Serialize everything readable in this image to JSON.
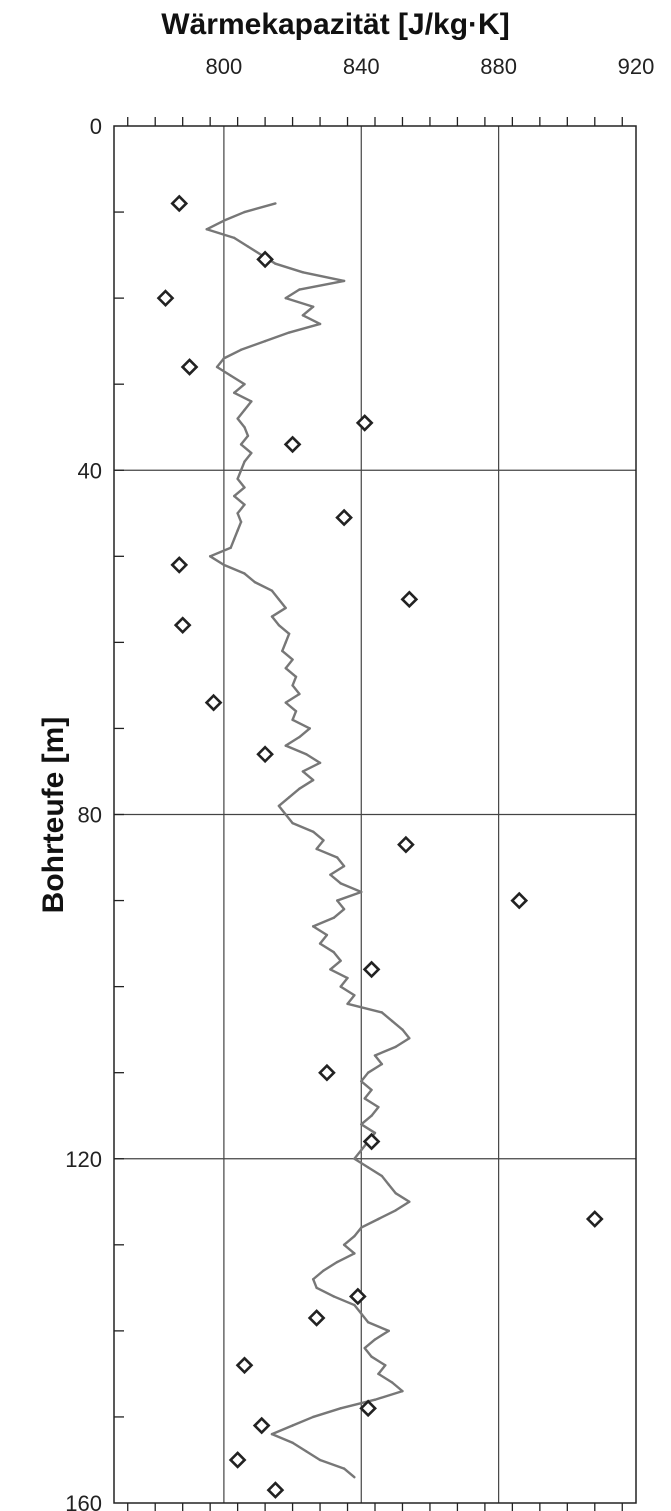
{
  "chart_data": {
    "type": "line",
    "title": "Wärmekapazität [J/kg·K]",
    "xlabel": "Wärmekapazität [J/kg·K]",
    "ylabel": "Bohrteufe [m]",
    "xlim": [
      768,
      920
    ],
    "ylim": [
      0,
      160
    ],
    "y_inverted": true,
    "x_axis_position": "top",
    "x_ticks": [
      800,
      840,
      880,
      920
    ],
    "y_ticks": [
      0,
      40,
      80,
      120,
      160
    ],
    "grid": true,
    "series": [
      {
        "style": "line",
        "color": "#777777",
        "points": [
          [
            815,
            9
          ],
          [
            806,
            10
          ],
          [
            800,
            11
          ],
          [
            795,
            12
          ],
          [
            803,
            13
          ],
          [
            807,
            14
          ],
          [
            811,
            15
          ],
          [
            815,
            16
          ],
          [
            823,
            17
          ],
          [
            835,
            18
          ],
          [
            822,
            19
          ],
          [
            818,
            20
          ],
          [
            826,
            21
          ],
          [
            823,
            22
          ],
          [
            828,
            23
          ],
          [
            819,
            24
          ],
          [
            812,
            25
          ],
          [
            805,
            26
          ],
          [
            800,
            27
          ],
          [
            798,
            28
          ],
          [
            802,
            29
          ],
          [
            806,
            30
          ],
          [
            803,
            31
          ],
          [
            808,
            32
          ],
          [
            806,
            33
          ],
          [
            804,
            34
          ],
          [
            806,
            35
          ],
          [
            807,
            36
          ],
          [
            805,
            37
          ],
          [
            808,
            38
          ],
          [
            806,
            39
          ],
          [
            805,
            40
          ],
          [
            804,
            41
          ],
          [
            806,
            42
          ],
          [
            803,
            43
          ],
          [
            806,
            44
          ],
          [
            804,
            45
          ],
          [
            805,
            46
          ],
          [
            804,
            47
          ],
          [
            803,
            48
          ],
          [
            802,
            49
          ],
          [
            796,
            50
          ],
          [
            800,
            51
          ],
          [
            806,
            52
          ],
          [
            809,
            53
          ],
          [
            814,
            54
          ],
          [
            816,
            55
          ],
          [
            818,
            56
          ],
          [
            814,
            57
          ],
          [
            816,
            58
          ],
          [
            819,
            59
          ],
          [
            818,
            60
          ],
          [
            817,
            61
          ],
          [
            820,
            62
          ],
          [
            818,
            63
          ],
          [
            821,
            64
          ],
          [
            820,
            65
          ],
          [
            822,
            66
          ],
          [
            818,
            67
          ],
          [
            821,
            68
          ],
          [
            820,
            69
          ],
          [
            825,
            70
          ],
          [
            822,
            71
          ],
          [
            818,
            72
          ],
          [
            824,
            73
          ],
          [
            828,
            74
          ],
          [
            823,
            75
          ],
          [
            826,
            76
          ],
          [
            822,
            77
          ],
          [
            819,
            78
          ],
          [
            816,
            79
          ],
          [
            818,
            80
          ],
          [
            820,
            81
          ],
          [
            826,
            82
          ],
          [
            829,
            83
          ],
          [
            827,
            84
          ],
          [
            833,
            85
          ],
          [
            835,
            86
          ],
          [
            831,
            87
          ],
          [
            834,
            88
          ],
          [
            840,
            89
          ],
          [
            833,
            90
          ],
          [
            835,
            91
          ],
          [
            832,
            92
          ],
          [
            826,
            93
          ],
          [
            830,
            94
          ],
          [
            828,
            95
          ],
          [
            832,
            96
          ],
          [
            834,
            97
          ],
          [
            831,
            98
          ],
          [
            836,
            99
          ],
          [
            834,
            100
          ],
          [
            838,
            101
          ],
          [
            836,
            102
          ],
          [
            846,
            103
          ],
          [
            849,
            104
          ],
          [
            852,
            105
          ],
          [
            854,
            106
          ],
          [
            850,
            107
          ],
          [
            844,
            108
          ],
          [
            846,
            109
          ],
          [
            842,
            110
          ],
          [
            840,
            111
          ],
          [
            843,
            112
          ],
          [
            841,
            113
          ],
          [
            845,
            114
          ],
          [
            843,
            115
          ],
          [
            840,
            116
          ],
          [
            844,
            117
          ],
          [
            842,
            118
          ],
          [
            840,
            119
          ],
          [
            838,
            120
          ],
          [
            842,
            121
          ],
          [
            846,
            122
          ],
          [
            848,
            123
          ],
          [
            850,
            124
          ],
          [
            854,
            125
          ],
          [
            850,
            126
          ],
          [
            845,
            127
          ],
          [
            840,
            128
          ],
          [
            838,
            129
          ],
          [
            835,
            130
          ],
          [
            838,
            131
          ],
          [
            833,
            132
          ],
          [
            829,
            133
          ],
          [
            826,
            134
          ],
          [
            827,
            135
          ],
          [
            832,
            136
          ],
          [
            838,
            137
          ],
          [
            840,
            138
          ],
          [
            842,
            139
          ],
          [
            848,
            140
          ],
          [
            844,
            141
          ],
          [
            841,
            142
          ],
          [
            843,
            143
          ],
          [
            847,
            144
          ],
          [
            845,
            145
          ],
          [
            849,
            146
          ],
          [
            852,
            147
          ],
          [
            844,
            148
          ],
          [
            834,
            149
          ],
          [
            826,
            150
          ],
          [
            820,
            151
          ],
          [
            814,
            152
          ],
          [
            820,
            153
          ],
          [
            824,
            154
          ],
          [
            828,
            155
          ],
          [
            835,
            156
          ],
          [
            838,
            157
          ]
        ]
      },
      {
        "style": "marker",
        "marker": "diamond",
        "color": "#222222",
        "points": [
          [
            787,
            9
          ],
          [
            812,
            15.5
          ],
          [
            783,
            20
          ],
          [
            790,
            28
          ],
          [
            841,
            34.5
          ],
          [
            820,
            37
          ],
          [
            835,
            45.5
          ],
          [
            787,
            51
          ],
          [
            854,
            55
          ],
          [
            788,
            58
          ],
          [
            797,
            67
          ],
          [
            812,
            73
          ],
          [
            853,
            83.5
          ],
          [
            886,
            90
          ],
          [
            843,
            98
          ],
          [
            830,
            110
          ],
          [
            843,
            118
          ],
          [
            908,
            127
          ],
          [
            839,
            136
          ],
          [
            827,
            138.5
          ],
          [
            806,
            144
          ],
          [
            842,
            149
          ],
          [
            811,
            151
          ],
          [
            804,
            155
          ],
          [
            815,
            158.5
          ]
        ]
      }
    ]
  }
}
